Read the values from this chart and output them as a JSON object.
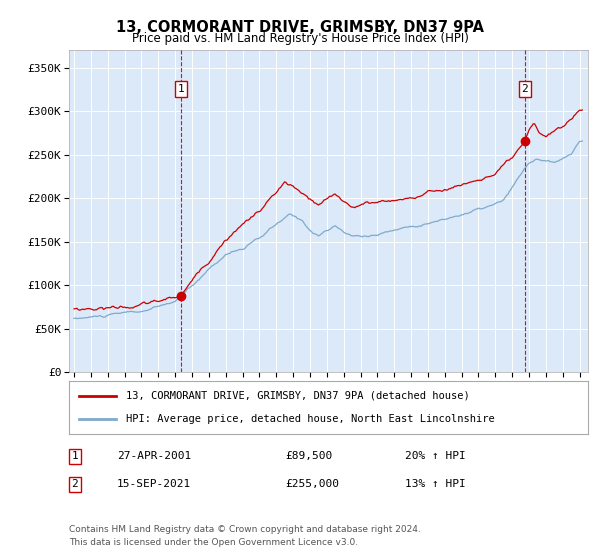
{
  "title": "13, CORMORANT DRIVE, GRIMSBY, DN37 9PA",
  "subtitle": "Price paid vs. HM Land Registry's House Price Index (HPI)",
  "sale1_date": "27-APR-2001",
  "sale1_price": 89500,
  "sale1_label": "1",
  "sale1_year": 2001.32,
  "sale2_date": "15-SEP-2021",
  "sale2_price": 255000,
  "sale2_label": "2",
  "sale2_year": 2021.71,
  "legend_line1": "13, CORMORANT DRIVE, GRIMSBY, DN37 9PA (detached house)",
  "legend_line2": "HPI: Average price, detached house, North East Lincolnshire",
  "annotation1_date": "27-APR-2001",
  "annotation1_price": "£89,500",
  "annotation1_hpi": "20% ↑ HPI",
  "annotation2_date": "15-SEP-2021",
  "annotation2_price": "£255,000",
  "annotation2_hpi": "13% ↑ HPI",
  "footer_line1": "Contains HM Land Registry data © Crown copyright and database right 2024.",
  "footer_line2": "This data is licensed under the Open Government Licence v3.0.",
  "ylim": [
    0,
    370000
  ],
  "yticks": [
    0,
    50000,
    100000,
    150000,
    200000,
    250000,
    300000,
    350000
  ],
  "ytick_labels": [
    "£0",
    "£50K",
    "£100K",
    "£150K",
    "£200K",
    "£250K",
    "£300K",
    "£350K"
  ],
  "background_color": "#dce9f8",
  "line1_color": "#cc0000",
  "line2_color": "#7faacc",
  "vline_color": "#cc0000",
  "grid_color": "#ffffff",
  "marker_color": "#cc0000",
  "box_color": "#cc0000",
  "xlim_start": 1994.7,
  "xlim_end": 2025.5
}
